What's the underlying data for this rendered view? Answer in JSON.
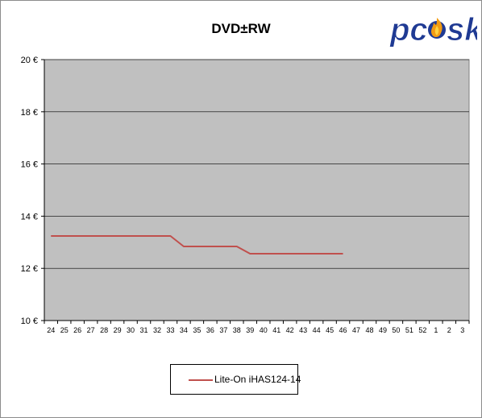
{
  "chart_data": {
    "type": "line",
    "title": "DVD±RW",
    "categories": [
      "24",
      "25",
      "26",
      "27",
      "28",
      "29",
      "30",
      "31",
      "32",
      "33",
      "34",
      "35",
      "36",
      "37",
      "38",
      "39",
      "40",
      "41",
      "42",
      "43",
      "44",
      "45",
      "46",
      "47",
      "48",
      "49",
      "50",
      "51",
      "52",
      "1",
      "2",
      "3"
    ],
    "series": [
      {
        "name": "Lite-On  iHAS124-14",
        "color": "#c0504d",
        "values": [
          13.24,
          13.24,
          13.24,
          13.24,
          13.24,
          13.24,
          13.24,
          13.24,
          13.24,
          13.24,
          12.84,
          12.84,
          12.84,
          12.84,
          12.84,
          12.56,
          12.56,
          12.56,
          12.56,
          12.56,
          12.56,
          12.56,
          12.56,
          null,
          null,
          null,
          null,
          null,
          null,
          null,
          null,
          null
        ]
      }
    ],
    "ylim": [
      10,
      20
    ],
    "y_ticks": [
      10,
      12,
      14,
      16,
      18,
      20
    ],
    "y_tick_suffix": " €",
    "grid": true,
    "legend_position": "bottom",
    "plot_background": "#c0c0c0"
  },
  "logo": {
    "text": "pc",
    "text2": "sk",
    "text_color": "#1f3a93",
    "flame_color": "#f39c12"
  }
}
